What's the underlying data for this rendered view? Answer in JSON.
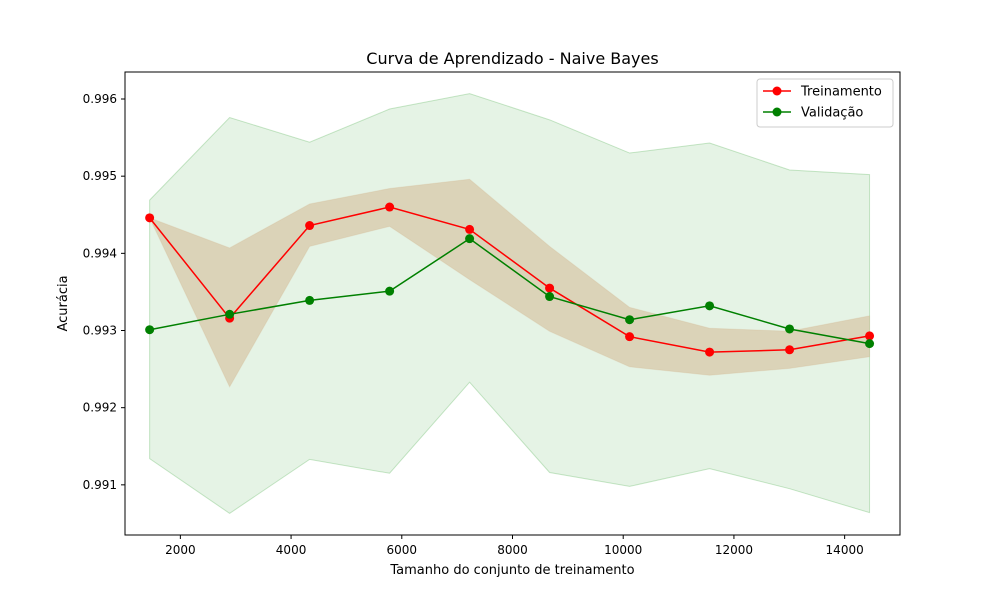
{
  "chart_data": {
    "type": "line",
    "title": "Curva de Aprendizado - Naive Bayes",
    "xlabel": "Tamanho do conjunto de treinamento",
    "ylabel": "Acurácia",
    "xlim": [
      1000,
      15000
    ],
    "ylim": [
      0.99035,
      0.99635
    ],
    "xticks": [
      2000,
      4000,
      6000,
      8000,
      10000,
      12000,
      14000
    ],
    "yticks": [
      0.991,
      0.992,
      0.993,
      0.994,
      0.995,
      0.996
    ],
    "grid": false,
    "legend_position": "top-right",
    "x": [
      1445,
      2890,
      4335,
      5780,
      7225,
      8670,
      10115,
      11560,
      13005,
      14450
    ],
    "series": [
      {
        "name": "Treinamento",
        "color": "#ff0000",
        "values": [
          0.99446,
          0.99316,
          0.99436,
          0.9946,
          0.99431,
          0.99355,
          0.99292,
          0.99272,
          0.99275,
          0.99293
        ],
        "band_lower": [
          0.99446,
          0.99227,
          0.99409,
          0.99435,
          0.99366,
          0.99299,
          0.99253,
          0.99242,
          0.99251,
          0.99266
        ],
        "band_upper": [
          0.99446,
          0.99407,
          0.99464,
          0.99484,
          0.99496,
          0.99409,
          0.9933,
          0.99303,
          0.99299,
          0.99319
        ],
        "band_color": "#d2b48c"
      },
      {
        "name": "Validação",
        "color": "#008000",
        "values": [
          0.99301,
          0.99321,
          0.99339,
          0.99351,
          0.99419,
          0.99344,
          0.99314,
          0.99332,
          0.99302,
          0.99283
        ],
        "band_lower": [
          0.99134,
          0.99063,
          0.99133,
          0.99115,
          0.99233,
          0.99116,
          0.99098,
          0.99121,
          0.99095,
          0.99064
        ],
        "band_upper": [
          0.99469,
          0.99576,
          0.99544,
          0.99587,
          0.99607,
          0.99573,
          0.9953,
          0.99543,
          0.99508,
          0.99502
        ],
        "band_color": "#2ca02c"
      }
    ]
  }
}
